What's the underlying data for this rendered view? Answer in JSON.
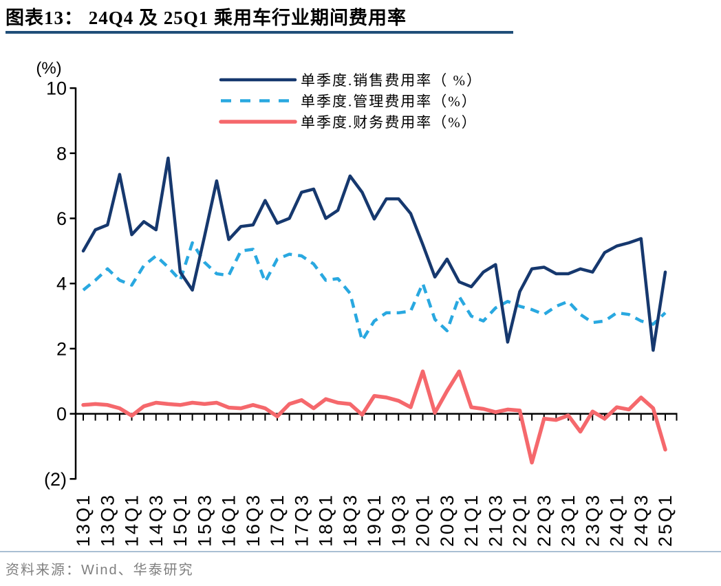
{
  "header": {
    "title": "图表13： 24Q4 及 25Q1 乘用车行业期间费用率"
  },
  "footer": {
    "source": "资料来源：Wind、华泰研究"
  },
  "colors": {
    "title_underline": "#1F4E79",
    "footer_divider": "#A9BFD3",
    "source_text": "#7F7F7F",
    "axis": "#000000",
    "sales_line": "#16386E",
    "admin_line": "#29A8E0",
    "finance_line": "#F5686C"
  },
  "chart_data": {
    "type": "line",
    "title": "24Q4 及 25Q1 乘用车行业期间费用率",
    "unit_label": "(%)",
    "xlabel": "",
    "ylabel": "(%)",
    "ylim": [
      -2,
      10
    ],
    "grid": false,
    "legend_position": "top-center",
    "y_ticks": [
      {
        "label": "10",
        "value": 10
      },
      {
        "label": "8",
        "value": 8
      },
      {
        "label": "6",
        "value": 6
      },
      {
        "label": "4",
        "value": 4
      },
      {
        "label": "2",
        "value": 2
      },
      {
        "label": "0",
        "value": 0
      },
      {
        "label": "(2)",
        "value": -2
      }
    ],
    "categories": [
      "13Q1",
      "13Q2",
      "13Q3",
      "13Q4",
      "14Q1",
      "14Q2",
      "14Q3",
      "14Q4",
      "15Q1",
      "15Q2",
      "15Q3",
      "15Q4",
      "16Q1",
      "16Q2",
      "16Q3",
      "16Q4",
      "17Q1",
      "17Q2",
      "17Q3",
      "17Q4",
      "18Q1",
      "18Q2",
      "18Q3",
      "18Q4",
      "19Q1",
      "19Q2",
      "19Q3",
      "19Q4",
      "20Q1",
      "20Q2",
      "20Q3",
      "20Q4",
      "21Q1",
      "21Q2",
      "21Q3",
      "21Q4",
      "22Q1",
      "22Q2",
      "22Q3",
      "22Q4",
      "23Q1",
      "23Q2",
      "23Q3",
      "23Q4",
      "24Q1",
      "24Q2",
      "24Q3",
      "24Q4",
      "25Q1"
    ],
    "x_tick_labels": [
      "13Q1",
      "13Q3",
      "14Q1",
      "14Q3",
      "15Q1",
      "15Q3",
      "16Q1",
      "16Q3",
      "17Q1",
      "17Q3",
      "18Q1",
      "18Q3",
      "19Q1",
      "19Q3",
      "20Q1",
      "20Q3",
      "21Q1",
      "21Q3",
      "22Q1",
      "22Q3",
      "23Q1",
      "23Q3",
      "24Q1",
      "24Q3",
      "25Q1"
    ],
    "series": [
      {
        "name": "单季度.销售费用率（ %）",
        "color": "#16386E",
        "style": "solid",
        "values": [
          5.0,
          5.65,
          5.8,
          7.35,
          5.5,
          5.9,
          5.65,
          7.85,
          4.35,
          3.8,
          5.45,
          7.15,
          5.35,
          5.75,
          5.8,
          6.55,
          5.85,
          6.0,
          6.8,
          6.9,
          6.0,
          6.25,
          7.3,
          6.8,
          5.98,
          6.6,
          6.6,
          6.15,
          5.2,
          4.2,
          4.75,
          4.05,
          3.9,
          4.35,
          4.58,
          2.2,
          3.75,
          4.45,
          4.5,
          4.3,
          4.3,
          4.45,
          4.35,
          4.95,
          5.15,
          5.25,
          5.38,
          1.95,
          4.35
        ]
      },
      {
        "name": "单季度.管理费用率（%）",
        "color": "#29A8E0",
        "style": "dashed",
        "values": [
          3.8,
          4.1,
          4.45,
          4.1,
          3.95,
          4.55,
          4.85,
          4.5,
          4.1,
          5.25,
          4.65,
          4.3,
          4.25,
          5.0,
          5.05,
          4.05,
          4.75,
          4.9,
          4.85,
          4.6,
          4.1,
          4.15,
          3.7,
          2.25,
          2.85,
          3.1,
          3.1,
          3.15,
          4.0,
          2.9,
          2.55,
          3.6,
          3.0,
          2.85,
          3.25,
          3.45,
          3.3,
          3.2,
          3.05,
          3.3,
          3.45,
          3.05,
          2.8,
          2.85,
          3.1,
          3.05,
          2.85,
          2.75,
          3.1
        ]
      },
      {
        "name": "单季度.财务费用率（%）",
        "color": "#F5686C",
        "style": "solid",
        "values": [
          0.27,
          0.3,
          0.27,
          0.17,
          -0.06,
          0.23,
          0.34,
          0.3,
          0.27,
          0.34,
          0.3,
          0.34,
          0.19,
          0.17,
          0.27,
          0.17,
          -0.08,
          0.3,
          0.42,
          0.17,
          0.45,
          0.34,
          0.3,
          -0.03,
          0.55,
          0.5,
          0.4,
          0.2,
          1.3,
          0.03,
          0.7,
          1.3,
          0.2,
          0.15,
          0.05,
          0.13,
          0.1,
          -1.5,
          -0.15,
          -0.19,
          -0.05,
          -0.55,
          0.07,
          -0.15,
          0.2,
          0.13,
          0.5,
          0.17,
          -1.1
        ]
      }
    ]
  }
}
